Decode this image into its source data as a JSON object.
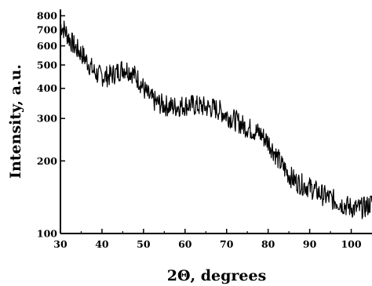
{
  "chart_data": {
    "type": "line",
    "title": "",
    "xlabel": "2Θ, degrees",
    "ylabel": "Intensity, a.u.",
    "xlim": [
      30,
      105
    ],
    "ylim": [
      100,
      850
    ],
    "y_scale": "log",
    "grid": false,
    "legend": "none",
    "line_color": "#000000",
    "x_ticks": [
      30,
      40,
      50,
      60,
      70,
      80,
      90,
      100
    ],
    "x_tick_labels": [
      "30",
      "40",
      "50",
      "60",
      "70",
      "80",
      "90",
      "100"
    ],
    "y_ticks": [
      100,
      200,
      300,
      400,
      500,
      600,
      700,
      800
    ],
    "y_tick_labels": [
      "100",
      "200",
      "300",
      "400",
      "500",
      "600",
      "700",
      "800"
    ],
    "series": [
      {
        "x": [
          30,
          31,
          32,
          33,
          34,
          35,
          36,
          37,
          38,
          39,
          40,
          41,
          42,
          43,
          44,
          45,
          46,
          47,
          48,
          49,
          50,
          51,
          52,
          53,
          54,
          55,
          56,
          57,
          58,
          59,
          60,
          61,
          62,
          63,
          64,
          65,
          66,
          67,
          68,
          69,
          70,
          71,
          72,
          73,
          74,
          75,
          76,
          77,
          78,
          79,
          80,
          81,
          82,
          83,
          84,
          85,
          86,
          87,
          88,
          89,
          90,
          91,
          92,
          93,
          94,
          95,
          96,
          97,
          98,
          99,
          100,
          101,
          102,
          103,
          104,
          105
        ],
        "y": [
          730,
          700,
          650,
          610,
          580,
          560,
          530,
          500,
          470,
          455,
          450,
          448,
          452,
          460,
          470,
          485,
          480,
          470,
          450,
          430,
          400,
          375,
          360,
          350,
          345,
          340,
          338,
          335,
          336,
          338,
          340,
          342,
          340,
          338,
          336,
          334,
          332,
          330,
          326,
          318,
          310,
          302,
          295,
          288,
          280,
          275,
          270,
          265,
          260,
          250,
          240,
          225,
          210,
          195,
          185,
          175,
          168,
          163,
          160,
          158,
          155,
          152,
          148,
          145,
          142,
          140,
          137,
          135,
          132,
          130,
          128,
          127,
          127,
          128,
          130,
          135
        ]
      }
    ]
  }
}
